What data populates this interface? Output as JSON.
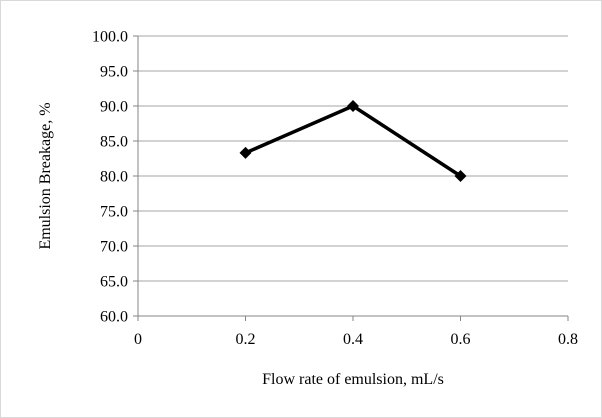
{
  "chart_data": {
    "type": "line",
    "title": "",
    "xlabel": "Flow rate of emulsion, mL/s",
    "ylabel": "Emulsion Breakage, %",
    "xlim": [
      0,
      0.8
    ],
    "ylim": [
      60,
      100
    ],
    "x_ticks": [
      "0",
      "0.2",
      "0.4",
      "0.6",
      "0.8"
    ],
    "y_ticks": [
      "60.0",
      "65.0",
      "70.0",
      "75.0",
      "80.0",
      "85.0",
      "90.0",
      "95.0",
      "100.0"
    ],
    "x_tick_values": [
      0,
      0.2,
      0.4,
      0.6,
      0.8
    ],
    "y_tick_values": [
      60,
      65,
      70,
      75,
      80,
      85,
      90,
      95,
      100
    ],
    "grid": "horizontal",
    "legend": "none",
    "series": [
      {
        "x": [
          0.2,
          0.4,
          0.6
        ],
        "y": [
          83.3,
          90.0,
          80.0
        ],
        "color": "#000000",
        "marker": "diamond"
      }
    ]
  },
  "colors": {
    "gridline": "#a6a6a6",
    "axis": "#868686",
    "border": "#d9d9d9",
    "series": "#000000"
  }
}
